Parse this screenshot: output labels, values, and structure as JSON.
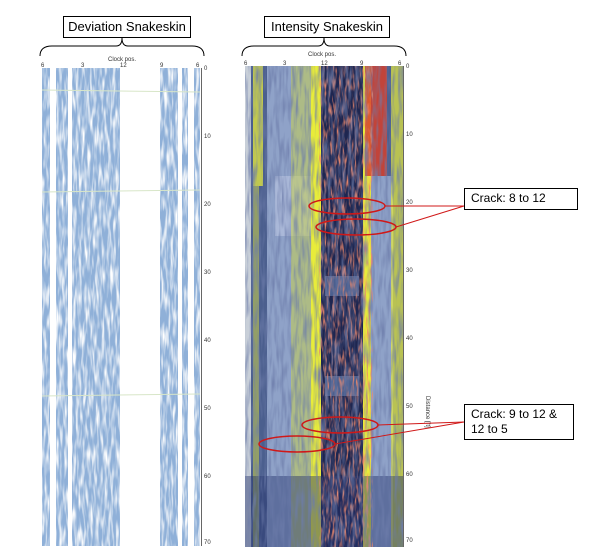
{
  "panels": {
    "deviation": {
      "title": "Deviation Snakeskin",
      "x_axis_title": "Clock pos.",
      "x_ticks": [
        "6",
        "3",
        "12",
        "9",
        "6"
      ],
      "depth_ticks": [
        "0",
        "10",
        "20",
        "30",
        "40",
        "50",
        "60",
        "70"
      ]
    },
    "intensity": {
      "title": "Intensity Snakeskin",
      "x_axis_title": "Clock pos.",
      "x_ticks": [
        "6",
        "3",
        "12",
        "9",
        "6"
      ],
      "depth_ticks": [
        "0",
        "10",
        "20",
        "30",
        "40",
        "50",
        "60",
        "70"
      ],
      "y_axis_title": "Distance [ft]"
    }
  },
  "callouts": {
    "crack1": "Crack: 8 to 12",
    "crack2": "Crack: 9 to 12 & 12 to 5"
  },
  "colors": {
    "deviation_fill": "#8fb0d8",
    "intensity_base": "#4b5f8e",
    "intensity_dark": "#1e2650",
    "intensity_yellow": "#e8ec3a",
    "intensity_red": "#d6402c",
    "annotation_red": "#d01818"
  }
}
